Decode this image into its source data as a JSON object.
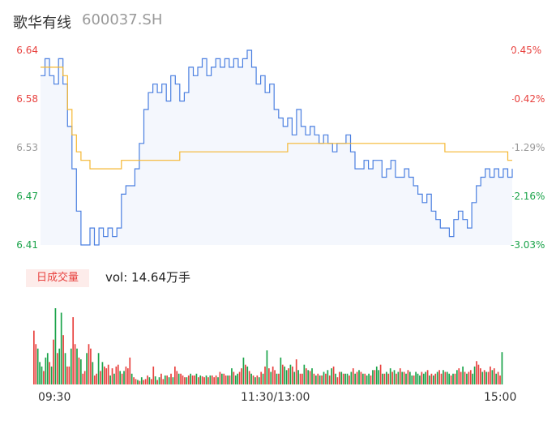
{
  "header": {
    "name": "歌华有线",
    "code": "600037.SH"
  },
  "price_axis": [
    {
      "price": "6.64",
      "pct": "0.45%",
      "color": "#e8423f"
    },
    {
      "price": "6.58",
      "pct": "-0.42%",
      "color": "#e8423f"
    },
    {
      "price": "6.53",
      "pct": "-1.29%",
      "color": "#999999"
    },
    {
      "price": "6.47",
      "pct": "-2.16%",
      "color": "#1aa34a"
    },
    {
      "price": "6.41",
      "pct": "-3.03%",
      "color": "#1aa34a"
    }
  ],
  "volume_panel": {
    "tab_label": "日成交量",
    "summary": "vol: 14.64万手"
  },
  "time_ticks": [
    "09:30",
    "11:30/13:00",
    "15:00"
  ],
  "colors": {
    "price_line": "#4a7fe0",
    "avg_line": "#f5b731",
    "area_fill": "#f4f7fd",
    "up": "#e8423f",
    "down": "#1aa34a"
  },
  "chart_data": [
    {
      "type": "line",
      "ylim": [
        6.41,
        6.64
      ],
      "x_range": [
        0,
        240
      ],
      "series": [
        {
          "values": [
            6.61,
            6.63,
            6.61,
            6.6,
            6.63,
            6.6,
            6.55,
            6.5,
            6.45,
            6.41,
            6.41,
            6.43,
            6.41,
            6.43,
            6.42,
            6.43,
            6.42,
            6.43,
            6.47,
            6.48,
            6.48,
            6.5,
            6.53,
            6.57,
            6.59,
            6.6,
            6.59,
            6.6,
            6.58,
            6.61,
            6.6,
            6.58,
            6.59,
            6.62,
            6.61,
            6.62,
            6.63,
            6.61,
            6.62,
            6.63,
            6.62,
            6.63,
            6.62,
            6.63,
            6.62,
            6.63,
            6.64,
            6.62,
            6.6,
            6.61,
            6.59,
            6.6,
            6.57,
            6.56,
            6.55,
            6.56,
            6.54,
            6.57,
            6.55,
            6.54,
            6.55,
            6.54,
            6.53,
            6.54,
            6.53,
            6.52,
            6.53,
            6.53,
            6.54,
            6.52,
            6.5,
            6.5,
            6.51,
            6.5,
            6.51,
            6.51,
            6.49,
            6.5,
            6.51,
            6.49,
            6.49,
            6.5,
            6.49,
            6.48,
            6.47,
            6.46,
            6.47,
            6.45,
            6.44,
            6.43,
            6.43,
            6.42,
            6.44,
            6.45,
            6.44,
            6.43,
            6.46,
            6.48,
            6.49,
            6.5,
            6.49,
            6.5,
            6.49,
            6.5,
            6.49,
            6.5
          ]
        },
        {
          "values": [
            6.62,
            6.62,
            6.62,
            6.62,
            6.62,
            6.61,
            6.57,
            6.54,
            6.52,
            6.51,
            6.51,
            6.5,
            6.5,
            6.5,
            6.5,
            6.5,
            6.5,
            6.5,
            6.51,
            6.51,
            6.51,
            6.51,
            6.51,
            6.51,
            6.51,
            6.51,
            6.51,
            6.51,
            6.51,
            6.51,
            6.51,
            6.52,
            6.52,
            6.52,
            6.52,
            6.52,
            6.52,
            6.52,
            6.52,
            6.52,
            6.52,
            6.52,
            6.52,
            6.52,
            6.52,
            6.52,
            6.52,
            6.52,
            6.52,
            6.52,
            6.52,
            6.52,
            6.52,
            6.52,
            6.52,
            6.53,
            6.53,
            6.53,
            6.53,
            6.53,
            6.53,
            6.53,
            6.53,
            6.53,
            6.53,
            6.53,
            6.53,
            6.53,
            6.53,
            6.53,
            6.53,
            6.53,
            6.53,
            6.53,
            6.53,
            6.53,
            6.53,
            6.53,
            6.53,
            6.53,
            6.53,
            6.53,
            6.53,
            6.53,
            6.53,
            6.53,
            6.53,
            6.53,
            6.53,
            6.53,
            6.52,
            6.52,
            6.52,
            6.52,
            6.52,
            6.52,
            6.52,
            6.52,
            6.52,
            6.52,
            6.52,
            6.52,
            6.52,
            6.52,
            6.51,
            6.51
          ]
        }
      ]
    },
    {
      "type": "bar",
      "x_range": [
        0,
        240
      ],
      "values": [
        60,
        45,
        40,
        25,
        20,
        15,
        30,
        35,
        25,
        20,
        50,
        85,
        35,
        40,
        80,
        55,
        35,
        20,
        20,
        40,
        75,
        45,
        40,
        30,
        28,
        12,
        15,
        35,
        45,
        40,
        25,
        10,
        12,
        35,
        15,
        25,
        20,
        18,
        22,
        10,
        18,
        12,
        20,
        22,
        15,
        12,
        15,
        20,
        18,
        30,
        12,
        8,
        6,
        5,
        4,
        8,
        5,
        6,
        10,
        8,
        6,
        20,
        9,
        5,
        8,
        12,
        6,
        10,
        10,
        8,
        12,
        8,
        20,
        15,
        12,
        12,
        10,
        8,
        8,
        10,
        12,
        10,
        10,
        12,
        8,
        10,
        9,
        8,
        10,
        8,
        10,
        10,
        8,
        10,
        8,
        14,
        12,
        12,
        10,
        10,
        10,
        18,
        14,
        10,
        12,
        14,
        18,
        30,
        22,
        20,
        15,
        12,
        10,
        8,
        10,
        8,
        14,
        12,
        20,
        38,
        18,
        14,
        20,
        16,
        12,
        12,
        30,
        22,
        20,
        16,
        18,
        22,
        20,
        14,
        28,
        16,
        12,
        12,
        22,
        18,
        16,
        15,
        18,
        12,
        10,
        12,
        10,
        10,
        14,
        12,
        16,
        10,
        18,
        20,
        12,
        8,
        14,
        14,
        12,
        12,
        12,
        10,
        14,
        18,
        12,
        14,
        16,
        14,
        12,
        12,
        10,
        12,
        10,
        16,
        16,
        20,
        16,
        22,
        12,
        12,
        14,
        12,
        18,
        14,
        16,
        12,
        14,
        18,
        14,
        14,
        12,
        16,
        14,
        10,
        10,
        14,
        12,
        10,
        14,
        12,
        14,
        16,
        10,
        12,
        10,
        12,
        14,
        16,
        12,
        16,
        14,
        14,
        12,
        10,
        12,
        12,
        16,
        18,
        14,
        20,
        14,
        12,
        14,
        16,
        12,
        20,
        26,
        22,
        18,
        14,
        16,
        14,
        14,
        20,
        16,
        18,
        12,
        14,
        10,
        36
      ],
      "colors": [
        "up",
        "up",
        "down",
        "down",
        "down",
        "up",
        "down",
        "down",
        "up",
        "down",
        "up",
        "down",
        "up",
        "down",
        "down",
        "up",
        "down",
        "up",
        "up",
        "down",
        "up",
        "up",
        "down",
        "up",
        "down",
        "up",
        "up",
        "down",
        "up",
        "up",
        "down",
        "up",
        "up",
        "down",
        "up",
        "down",
        "up",
        "up",
        "up",
        "down",
        "up",
        "down",
        "up",
        "up",
        "down",
        "up",
        "down",
        "up",
        "up",
        "up",
        "down",
        "up",
        "up",
        "down",
        "up",
        "down",
        "up",
        "up",
        "up",
        "down",
        "up",
        "up",
        "down",
        "up",
        "down",
        "up",
        "up",
        "down",
        "up",
        "down",
        "up",
        "down",
        "up",
        "up",
        "down",
        "up",
        "up",
        "up",
        "down",
        "up",
        "down",
        "up",
        "up",
        "down",
        "up",
        "down",
        "up",
        "up",
        "down",
        "up",
        "down",
        "up",
        "up",
        "up",
        "down",
        "up",
        "down",
        "up",
        "up",
        "down",
        "up",
        "down",
        "up",
        "down",
        "down",
        "up",
        "up",
        "down",
        "up",
        "down",
        "up",
        "down",
        "up",
        "down",
        "up",
        "down",
        "up",
        "down",
        "up",
        "down",
        "up",
        "down",
        "up",
        "up",
        "down",
        "up",
        "down",
        "up",
        "down",
        "down",
        "up",
        "down",
        "up",
        "down",
        "up",
        "down",
        "up",
        "up",
        "down",
        "up",
        "down",
        "up",
        "down",
        "up",
        "down",
        "up",
        "down",
        "up",
        "down",
        "up",
        "down",
        "up",
        "down",
        "up",
        "down",
        "up",
        "up",
        "down",
        "up",
        "down",
        "down",
        "up",
        "down",
        "up",
        "down",
        "up",
        "down",
        "up",
        "down",
        "up",
        "down",
        "down",
        "up",
        "down",
        "up",
        "down",
        "down",
        "up",
        "down",
        "up",
        "down",
        "up",
        "down",
        "up",
        "down",
        "up",
        "down",
        "up",
        "down",
        "up",
        "down",
        "up",
        "down",
        "down",
        "up",
        "down",
        "down",
        "down",
        "up",
        "down",
        "down",
        "up",
        "down",
        "up",
        "down",
        "up",
        "down",
        "up",
        "up",
        "down",
        "up",
        "down",
        "down",
        "up",
        "down",
        "up",
        "down",
        "up",
        "up",
        "down",
        "up",
        "down",
        "up",
        "up",
        "down",
        "down",
        "up",
        "up",
        "up",
        "down",
        "up",
        "down",
        "up",
        "up",
        "down",
        "up",
        "down",
        "up",
        "up",
        "down",
        "up",
        "down",
        "up",
        "up",
        "down",
        "up",
        "down",
        "up",
        "up"
      ]
    }
  ]
}
